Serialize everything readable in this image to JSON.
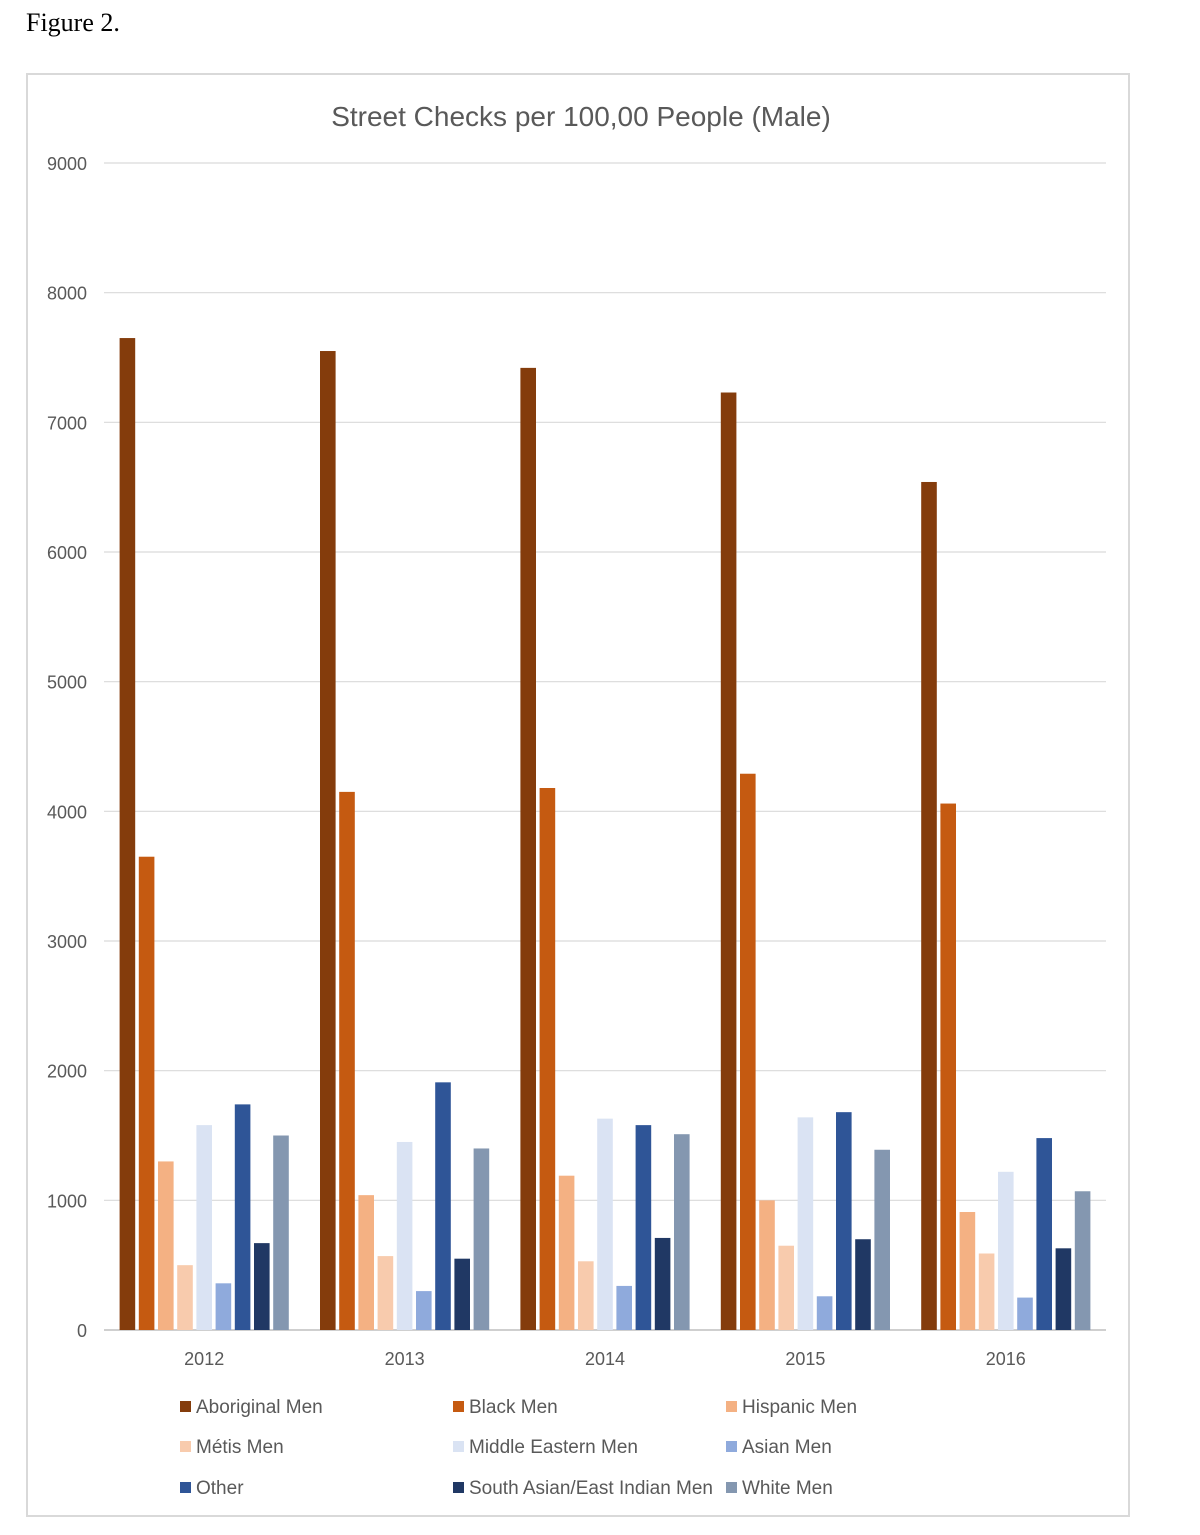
{
  "figure_caption": "Figure 2.",
  "chart_data": {
    "type": "bar",
    "title": "Street Checks per 100,00 People (Male)",
    "xlabel": "",
    "ylabel": "",
    "categories": [
      "2012",
      "2013",
      "2014",
      "2015",
      "2016"
    ],
    "ylim": [
      0,
      9000
    ],
    "yticks": [
      "0",
      "1000",
      "2000",
      "3000",
      "4000",
      "5000",
      "6000",
      "7000",
      "8000",
      "9000"
    ],
    "grid": true,
    "legend_position": "bottom",
    "series": [
      {
        "name": "Aboriginal Men",
        "color": "#843c0c",
        "values": [
          7650,
          7550,
          7420,
          7230,
          6540
        ]
      },
      {
        "name": "Black Men",
        "color": "#c55a11",
        "values": [
          3650,
          4150,
          4180,
          4290,
          4060
        ]
      },
      {
        "name": "Hispanic Men",
        "color": "#f4b183",
        "values": [
          1300,
          1040,
          1190,
          1000,
          910
        ]
      },
      {
        "name": "Métis Men",
        "color": "#f8cbad",
        "values": [
          500,
          570,
          530,
          650,
          590
        ]
      },
      {
        "name": "Middle Eastern Men",
        "color": "#dae3f3",
        "values": [
          1580,
          1450,
          1630,
          1640,
          1220
        ]
      },
      {
        "name": "Asian Men",
        "color": "#8faadc",
        "values": [
          360,
          300,
          340,
          260,
          250
        ]
      },
      {
        "name": "Other",
        "color": "#2f5597",
        "values": [
          1740,
          1910,
          1580,
          1680,
          1480
        ]
      },
      {
        "name": "South Asian/East Indian Men",
        "color": "#203864",
        "values": [
          670,
          550,
          710,
          700,
          630
        ]
      },
      {
        "name": "White Men",
        "color": "#8497b0",
        "values": [
          1500,
          1400,
          1510,
          1390,
          1070
        ]
      }
    ]
  }
}
